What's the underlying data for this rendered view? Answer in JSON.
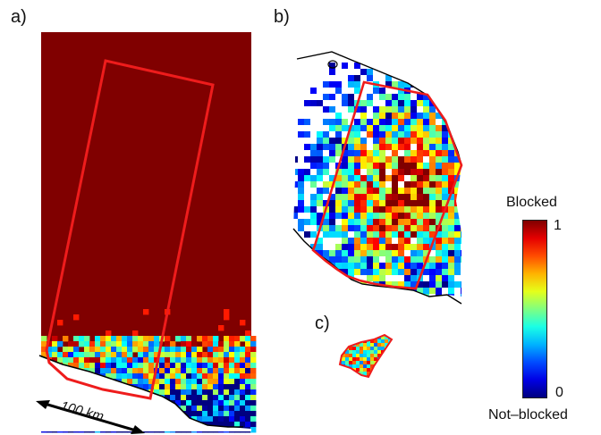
{
  "panels": [
    {
      "id": "a",
      "label": "a)"
    },
    {
      "id": "b",
      "label": "b)"
    },
    {
      "id": "c",
      "label": "c)"
    }
  ],
  "colorbar": {
    "title": "Blocked",
    "bottom_label": "Not–blocked",
    "tick_max": "1",
    "tick_min": "0",
    "range": [
      0,
      1
    ],
    "colormap": "jet"
  },
  "scale_bar": {
    "label": "100 km"
  },
  "colors": {
    "outline": "#ee1c1c",
    "coastline": "#000000",
    "blocked": "#800000",
    "not_blocked": "#00008f"
  }
}
